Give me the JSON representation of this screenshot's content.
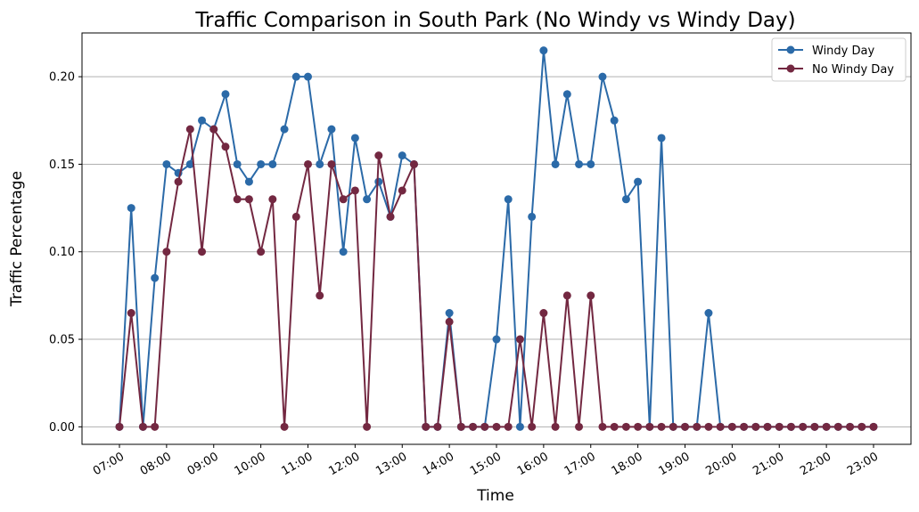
{
  "chart_data": {
    "type": "line",
    "title": "Traffic Comparison in South Park (No Windy vs Windy Day)",
    "xlabel": "Time",
    "ylabel": "Traffic Percentage",
    "xtick_labels": [
      "07:00",
      "08:00",
      "09:00",
      "10:00",
      "11:00",
      "12:00",
      "13:00",
      "14:00",
      "15:00",
      "16:00",
      "17:00",
      "18:00",
      "19:00",
      "20:00",
      "21:00",
      "22:00",
      "23:00"
    ],
    "yticks": [
      0.0,
      0.05,
      0.1,
      0.15,
      0.2
    ],
    "ytick_labels": [
      "0.00",
      "0.05",
      "0.10",
      "0.15",
      "0.20"
    ],
    "ylim": [
      -0.01,
      0.225
    ],
    "grid": "horizontal",
    "legend_position": "top-right",
    "x": [
      "07:00",
      "07:15",
      "07:30",
      "07:45",
      "08:00",
      "08:15",
      "08:30",
      "08:45",
      "09:00",
      "09:15",
      "09:30",
      "09:45",
      "10:00",
      "10:15",
      "10:30",
      "10:45",
      "11:00",
      "11:15",
      "11:30",
      "11:45",
      "12:00",
      "12:15",
      "12:30",
      "12:45",
      "13:00",
      "13:15",
      "13:30",
      "13:45",
      "14:00",
      "14:15",
      "14:30",
      "14:45",
      "15:00",
      "15:15",
      "15:30",
      "15:45",
      "16:00",
      "16:15",
      "16:30",
      "16:45",
      "17:00",
      "17:15",
      "17:30",
      "17:45",
      "18:00",
      "18:15",
      "18:30",
      "18:45",
      "19:00",
      "19:15",
      "19:30",
      "19:45",
      "20:00",
      "20:15",
      "20:30",
      "20:45",
      "21:00",
      "21:15",
      "21:30",
      "21:45",
      "22:00",
      "22:15",
      "22:30",
      "22:45",
      "23:00"
    ],
    "series": [
      {
        "name": "Windy Day",
        "color": "#2b6aa8",
        "values": [
          0,
          0.125,
          0,
          0.085,
          0.15,
          0.145,
          0.15,
          0.175,
          0.17,
          0.19,
          0.15,
          0.14,
          0.15,
          0.15,
          0.17,
          0.2,
          0.2,
          0.15,
          0.17,
          0.1,
          0.165,
          0.13,
          0.14,
          0.12,
          0.155,
          0.15,
          0,
          0,
          0.065,
          0,
          0,
          0,
          0.05,
          0.13,
          0,
          0.12,
          0.215,
          0.15,
          0.19,
          0.15,
          0.15,
          0.2,
          0.175,
          0.13,
          0.14,
          0,
          0.165,
          0,
          0,
          0,
          0.065,
          0,
          0,
          0,
          0,
          0,
          0,
          0,
          0,
          0,
          0,
          0,
          0,
          0,
          0
        ]
      },
      {
        "name": "No Windy Day",
        "color": "#732841",
        "values": [
          0,
          0.065,
          0,
          0,
          0.1,
          0.14,
          0.17,
          0.1,
          0.17,
          0.16,
          0.13,
          0.13,
          0.1,
          0.13,
          0,
          0.12,
          0.15,
          0.075,
          0.15,
          0.13,
          0.135,
          0,
          0.155,
          0.12,
          0.135,
          0.15,
          0,
          0,
          0.06,
          0,
          0,
          0,
          0,
          0,
          0.05,
          0,
          0.065,
          0,
          0.075,
          0,
          0.075,
          0,
          0,
          0,
          0,
          0,
          0,
          0,
          0,
          0,
          0,
          0,
          0,
          0,
          0,
          0,
          0,
          0,
          0,
          0,
          0,
          0,
          0,
          0,
          0
        ]
      }
    ]
  }
}
